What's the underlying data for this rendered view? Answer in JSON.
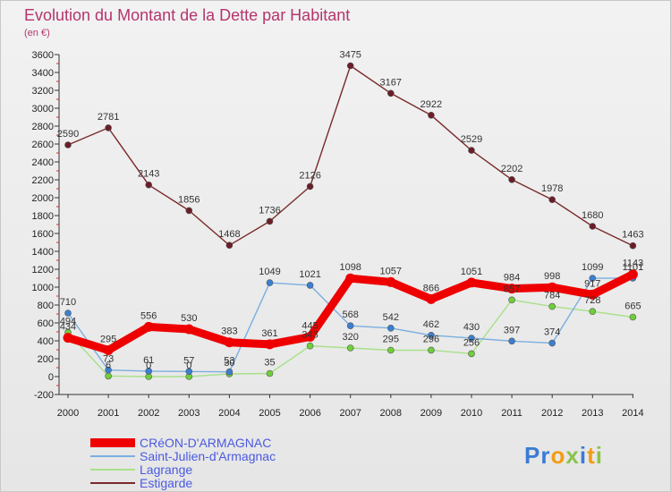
{
  "chart_data": {
    "type": "line",
    "title": "Evolution du Montant de la Dette par Habitant",
    "unit": "(en €)",
    "x": [
      "2000",
      "2001",
      "2002",
      "2003",
      "2004",
      "2005",
      "2006",
      "2007",
      "2008",
      "2009",
      "2010",
      "2011",
      "2012",
      "2013",
      "2014"
    ],
    "ylim": [
      -200,
      3600
    ],
    "yticks": [
      -200,
      0,
      200,
      400,
      600,
      800,
      1000,
      1200,
      1400,
      1600,
      1800,
      2000,
      2200,
      2400,
      2600,
      2800,
      3000,
      3200,
      3400,
      3600
    ],
    "grid": false,
    "legend_position": "bottom-left",
    "series": [
      {
        "name": "Estigarde",
        "color": "#7a2a2a",
        "point_color": "#6b1e28",
        "values": [
          2590,
          2781,
          2143,
          1856,
          1468,
          1736,
          2126,
          3475,
          3167,
          2922,
          2529,
          2202,
          1978,
          1680,
          1463
        ]
      },
      {
        "name": "Lagrange",
        "color": "#a8e08a",
        "point_color": "#6fcf3a",
        "values": [
          494,
          6,
          0,
          0,
          30,
          35,
          343,
          320,
          295,
          296,
          256,
          857,
          784,
          728,
          665
        ]
      },
      {
        "name": "Saint-Julien-d'Armagnac",
        "color": "#7aaee0",
        "point_color": "#3b7fd0",
        "values": [
          710,
          73,
          61,
          57,
          53,
          1049,
          1021,
          568,
          542,
          462,
          430,
          397,
          374,
          1099,
          1101
        ]
      },
      {
        "name": "CRéON-D'ARMAGNAC",
        "color": "#ee0000",
        "point_color": "#ee0000",
        "values": [
          434,
          295,
          556,
          530,
          383,
          361,
          445,
          1098,
          1057,
          866,
          1051,
          984,
          998,
          917,
          1143
        ]
      }
    ]
  },
  "labels": {
    "Estigarde": [
      "2590",
      "2781",
      "2143",
      "1856",
      "1468",
      "1736",
      "2126",
      "3475",
      "3167",
      "2922",
      "2529",
      "2202",
      "1978",
      "1680",
      "1463"
    ],
    "Lagrange": [
      "494",
      "6",
      "0",
      "0",
      "30",
      "35",
      "343",
      "320",
      "295",
      "296",
      "256",
      "857",
      "784",
      "728",
      "665"
    ],
    "Saint-Julien-d'Armagnac": [
      "710",
      "73",
      "61",
      "57",
      "53",
      "1049",
      "1021",
      "568",
      "542",
      "462",
      "430",
      "397",
      "374",
      "1099",
      "1101"
    ],
    "CRéON-D'ARMAGNAC": [
      "434",
      "295",
      "556",
      "530",
      "383",
      "361",
      "445",
      "1098",
      "1057",
      "866",
      "1051",
      "984",
      "998",
      "917",
      "1143"
    ]
  },
  "legend_order": [
    "CRéON-D'ARMAGNAC",
    "Saint-Julien-d'Armagnac",
    "Lagrange",
    "Estigarde"
  ],
  "logo": {
    "text": "Proxiti"
  }
}
